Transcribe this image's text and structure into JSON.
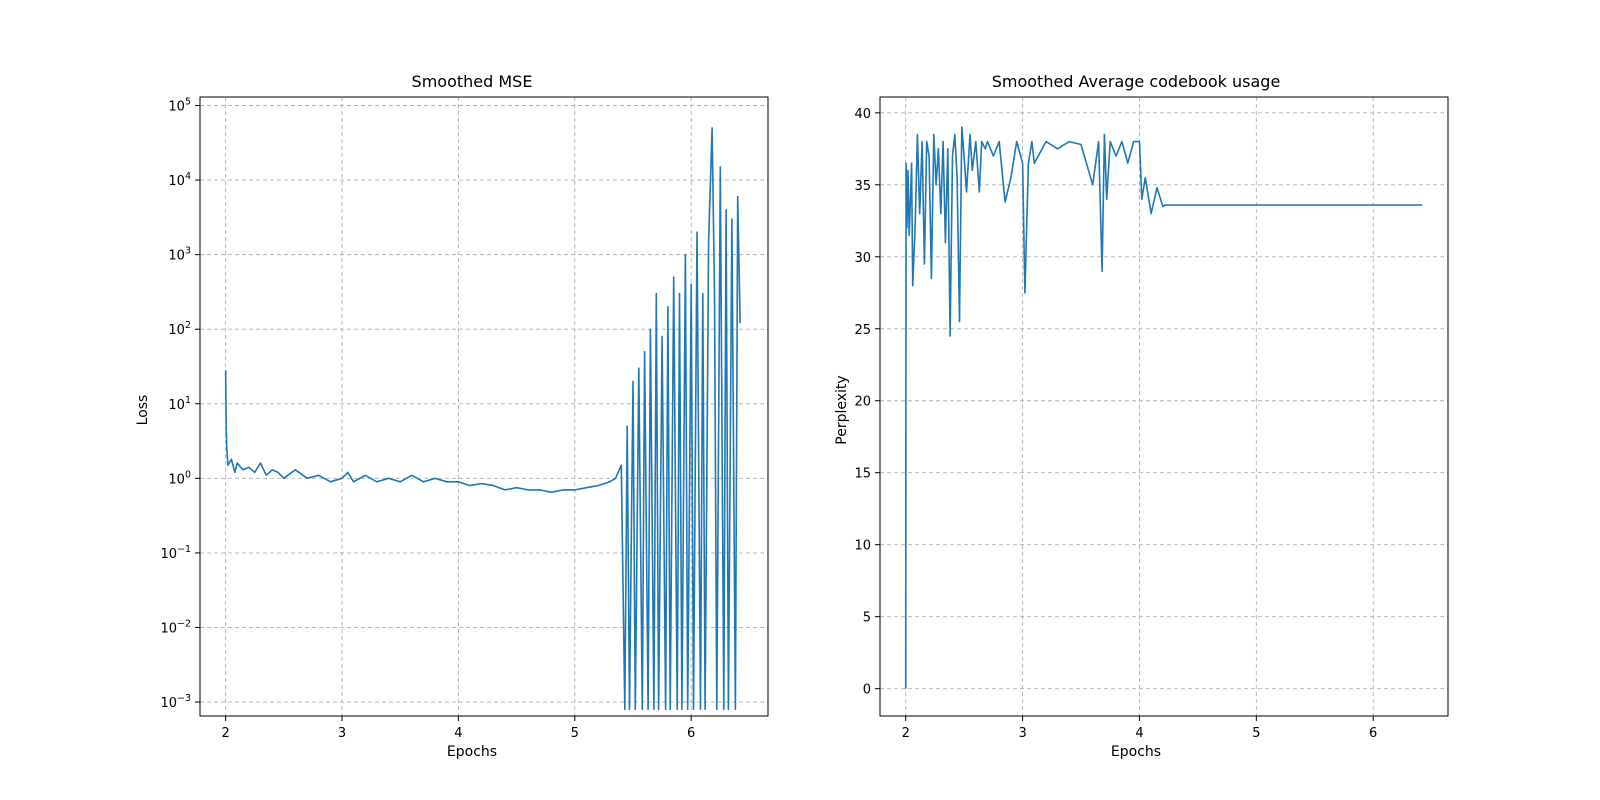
{
  "chart_data": [
    {
      "type": "line",
      "title": "Smoothed MSE",
      "xlabel": "Epochs",
      "ylabel": "Loss",
      "yscale": "log",
      "xlim": [
        1.78,
        6.66
      ],
      "ylim": [
        0.00065,
        130000
      ],
      "grid": true,
      "color": "#1f77b4",
      "xticks": [
        2,
        3,
        4,
        5,
        6
      ],
      "xtick_labels": [
        "2",
        "3",
        "4",
        "5",
        "6"
      ],
      "yticks": [
        0.001,
        0.01,
        0.1,
        1,
        10,
        100,
        1000,
        10000,
        100000
      ],
      "ytick_labels": [
        {
          "base": "10",
          "exp": "−3"
        },
        {
          "base": "10",
          "exp": "−2"
        },
        {
          "base": "10",
          "exp": "−1"
        },
        {
          "base": "10",
          "exp": "0"
        },
        {
          "base": "10",
          "exp": "1"
        },
        {
          "base": "10",
          "exp": "2"
        },
        {
          "base": "10",
          "exp": "3"
        },
        {
          "base": "10",
          "exp": "4"
        },
        {
          "base": "10",
          "exp": "5"
        }
      ],
      "series": [
        {
          "x": [
            2.0,
            2.005,
            2.01,
            2.02,
            2.05,
            2.08,
            2.1,
            2.15,
            2.2,
            2.25,
            2.3,
            2.35,
            2.4,
            2.45,
            2.5,
            2.6,
            2.7,
            2.8,
            2.9,
            3.0,
            3.05,
            3.1,
            3.2,
            3.3,
            3.4,
            3.5,
            3.6,
            3.7,
            3.8,
            3.9,
            4.0,
            4.1,
            4.2,
            4.3,
            4.4,
            4.5,
            4.6,
            4.7,
            4.8,
            4.9,
            5.0,
            5.1,
            5.2,
            5.3,
            5.35,
            5.4,
            5.43,
            5.45,
            5.47,
            5.5,
            5.52,
            5.55,
            5.58,
            5.6,
            5.63,
            5.65,
            5.68,
            5.7,
            5.72,
            5.75,
            5.78,
            5.8,
            5.82,
            5.85,
            5.88,
            5.9,
            5.92,
            5.95,
            5.97,
            6.0,
            6.02,
            6.05,
            6.08,
            6.1,
            6.12,
            6.15,
            6.18,
            6.2,
            6.22,
            6.25,
            6.28,
            6.3,
            6.32,
            6.35,
            6.38,
            6.4,
            6.42
          ],
          "y": [
            28,
            5,
            2.5,
            1.5,
            1.8,
            1.2,
            1.6,
            1.3,
            1.4,
            1.2,
            1.6,
            1.1,
            1.3,
            1.2,
            1.0,
            1.3,
            1.0,
            1.1,
            0.9,
            1.0,
            1.2,
            0.9,
            1.1,
            0.9,
            1.0,
            0.9,
            1.1,
            0.9,
            1.0,
            0.9,
            0.9,
            0.8,
            0.85,
            0.8,
            0.7,
            0.75,
            0.7,
            0.7,
            0.65,
            0.7,
            0.7,
            0.75,
            0.8,
            0.9,
            1.0,
            1.5,
            0.0008,
            5,
            0.0008,
            20,
            0.0008,
            30,
            0.0008,
            50,
            0.0008,
            100,
            0.0008,
            300,
            0.0008,
            80,
            0.0008,
            200,
            0.0008,
            500,
            0.0008,
            300,
            0.0008,
            1000,
            0.0008,
            400,
            0.0008,
            2000,
            0.0008,
            300,
            0.0008,
            1500,
            50000,
            300,
            0.0008,
            15000,
            0.0008,
            4000,
            0.0008,
            3000,
            0.0008,
            6000,
            120
          ]
        }
      ]
    },
    {
      "type": "line",
      "title": "Smoothed Average codebook usage",
      "xlabel": "Epochs",
      "ylabel": "Perplexity",
      "yscale": "linear",
      "xlim": [
        1.78,
        6.64
      ],
      "ylim": [
        -1.9,
        41.1
      ],
      "grid": true,
      "color": "#1f77b4",
      "xticks": [
        2,
        3,
        4,
        5,
        6
      ],
      "xtick_labels": [
        "2",
        "3",
        "4",
        "5",
        "6"
      ],
      "yticks": [
        0,
        5,
        10,
        15,
        20,
        25,
        30,
        35,
        40
      ],
      "ytick_labels": [
        "0",
        "5",
        "10",
        "15",
        "20",
        "25",
        "30",
        "35",
        "40"
      ],
      "series": [
        {
          "x": [
            2.0,
            2.003,
            2.01,
            2.02,
            2.03,
            2.05,
            2.06,
            2.08,
            2.1,
            2.12,
            2.14,
            2.16,
            2.18,
            2.2,
            2.22,
            2.24,
            2.26,
            2.28,
            2.3,
            2.32,
            2.34,
            2.36,
            2.38,
            2.4,
            2.42,
            2.44,
            2.46,
            2.48,
            2.5,
            2.52,
            2.55,
            2.57,
            2.6,
            2.63,
            2.65,
            2.68,
            2.7,
            2.75,
            2.8,
            2.85,
            2.9,
            2.95,
            3.0,
            3.02,
            3.05,
            3.08,
            3.1,
            3.2,
            3.3,
            3.4,
            3.5,
            3.6,
            3.65,
            3.68,
            3.7,
            3.72,
            3.75,
            3.8,
            3.85,
            3.9,
            3.95,
            4.0,
            4.02,
            4.05,
            4.1,
            4.15,
            4.2,
            4.22,
            4.25,
            4.5,
            5.0,
            5.5,
            6.0,
            6.42
          ],
          "y": [
            0,
            36.5,
            32,
            36,
            31.5,
            36.5,
            28,
            32,
            38.5,
            33,
            38,
            29.5,
            38,
            37,
            28.5,
            38.5,
            35,
            37.5,
            33,
            38,
            31,
            37.5,
            24.5,
            37,
            38.5,
            35.5,
            25.5,
            39,
            37,
            34.5,
            38.5,
            36,
            38,
            34.5,
            38,
            37.5,
            38,
            37,
            38,
            33.8,
            35.5,
            38,
            36.5,
            27.5,
            36.5,
            38,
            36.5,
            38,
            37.5,
            38,
            37.8,
            35,
            38,
            29,
            38.5,
            34,
            38,
            37,
            38,
            36.5,
            38,
            38,
            34,
            35.5,
            33,
            34.8,
            33.5,
            33.6,
            33.6,
            33.6,
            33.6,
            33.6,
            33.6,
            33.6
          ]
        }
      ]
    }
  ]
}
